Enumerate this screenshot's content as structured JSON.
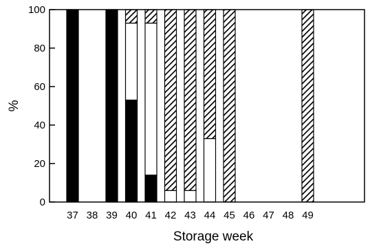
{
  "chart_data": {
    "type": "bar",
    "stacked": true,
    "xlabel": "Storage week",
    "ylabel": "%",
    "ylim": [
      0,
      100
    ],
    "yticks": [
      0,
      20,
      40,
      60,
      80,
      100
    ],
    "categories": [
      "37",
      "38",
      "39",
      "40",
      "41",
      "42",
      "43",
      "44",
      "45",
      "46",
      "47",
      "48",
      "49"
    ],
    "series": [
      {
        "fill": "solid",
        "color": "#000000",
        "values": [
          100,
          0,
          100,
          53,
          14,
          0,
          0,
          0,
          0,
          0,
          0,
          0,
          0
        ]
      },
      {
        "fill": "empty",
        "color": "#ffffff",
        "values": [
          0,
          0,
          0,
          40,
          79,
          6,
          6,
          33,
          0,
          0,
          0,
          0,
          0
        ]
      },
      {
        "fill": "hatched",
        "color": "#000000",
        "values": [
          0,
          0,
          0,
          7,
          7,
          94,
          94,
          67,
          100,
          0,
          0,
          0,
          100
        ]
      }
    ],
    "grid": false,
    "legend": "none"
  }
}
